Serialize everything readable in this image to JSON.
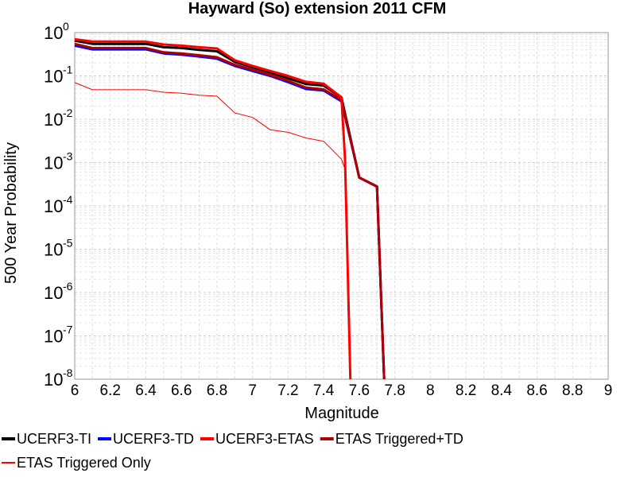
{
  "chart_data": {
    "type": "line",
    "title": "Hayward (So) extension 2011 CFM",
    "xlabel": "Magnitude",
    "ylabel": "500 Year Probability",
    "xlim": [
      6,
      9
    ],
    "ylim": [
      1e-08,
      1
    ],
    "yscale": "log",
    "grid": true,
    "legend_position": "bottom",
    "x_ticks": [
      "6",
      "6.2",
      "6.4",
      "6.6",
      "6.8",
      "7",
      "7.2",
      "7.4",
      "7.6",
      "7.8",
      "8",
      "8.2",
      "8.4",
      "8.6",
      "8.8",
      "9"
    ],
    "y_tick_base": "10",
    "y_tick_exponents": [
      "0",
      "-1",
      "-2",
      "-3",
      "-4",
      "-5",
      "-6",
      "-7",
      "-8"
    ],
    "series": [
      {
        "name": "UCERF3-TI",
        "color": "#000000",
        "width": 3,
        "x": [
          6.0,
          6.1,
          6.2,
          6.3,
          6.4,
          6.5,
          6.6,
          6.7,
          6.8,
          6.9,
          7.0,
          7.1,
          7.2,
          7.3,
          7.4,
          7.5,
          7.6,
          7.7,
          7.74
        ],
        "y": [
          0.65,
          0.55,
          0.55,
          0.55,
          0.55,
          0.46,
          0.44,
          0.4,
          0.37,
          0.21,
          0.16,
          0.12,
          0.088,
          0.065,
          0.06,
          0.032,
          0.00045,
          0.00028,
          1e-08
        ]
      },
      {
        "name": "UCERF3-TD",
        "color": "#0000ff",
        "width": 3,
        "x": [
          6.0,
          6.1,
          6.2,
          6.3,
          6.4,
          6.5,
          6.6,
          6.7,
          6.8,
          6.9,
          7.0,
          7.1,
          7.2,
          7.3,
          7.4,
          7.5,
          7.6,
          7.7,
          7.74
        ],
        "y": [
          0.5,
          0.41,
          0.41,
          0.41,
          0.41,
          0.33,
          0.31,
          0.28,
          0.25,
          0.17,
          0.13,
          0.1,
          0.072,
          0.05,
          0.046,
          0.026,
          0.00045,
          0.00028,
          1e-08
        ]
      },
      {
        "name": "UCERF3-ETAS",
        "color": "#ff0000",
        "width": 3,
        "x": [
          6.0,
          6.1,
          6.2,
          6.3,
          6.4,
          6.5,
          6.6,
          6.7,
          6.8,
          6.9,
          7.0,
          7.1,
          7.2,
          7.3,
          7.4,
          7.5,
          7.52,
          7.55
        ],
        "y": [
          0.7,
          0.62,
          0.62,
          0.62,
          0.62,
          0.53,
          0.5,
          0.46,
          0.43,
          0.23,
          0.17,
          0.13,
          0.1,
          0.073,
          0.066,
          0.032,
          0.0012,
          1e-08
        ]
      },
      {
        "name": "ETAS Triggered+TD",
        "color": "#b00000",
        "width": 3,
        "x": [
          6.0,
          6.1,
          6.2,
          6.3,
          6.4,
          6.5,
          6.6,
          6.7,
          6.8,
          6.9,
          7.0,
          7.1,
          7.2,
          7.3,
          7.4,
          7.5,
          7.6,
          7.7,
          7.74
        ],
        "y": [
          0.55,
          0.44,
          0.44,
          0.44,
          0.44,
          0.35,
          0.33,
          0.3,
          0.27,
          0.18,
          0.14,
          0.105,
          0.077,
          0.054,
          0.049,
          0.028,
          0.00045,
          0.00028,
          1e-08
        ]
      },
      {
        "name": "ETAS Triggered Only",
        "color": "#ff0000",
        "width": 1,
        "x": [
          6.0,
          6.1,
          6.2,
          6.3,
          6.4,
          6.5,
          6.6,
          6.7,
          6.8,
          6.9,
          7.0,
          7.1,
          7.2,
          7.3,
          7.4,
          7.5,
          7.52,
          7.55
        ],
        "y": [
          0.07,
          0.048,
          0.048,
          0.048,
          0.048,
          0.042,
          0.04,
          0.036,
          0.034,
          0.014,
          0.011,
          0.0057,
          0.005,
          0.0037,
          0.0031,
          0.0012,
          0.0007,
          1e-08
        ]
      }
    ]
  }
}
